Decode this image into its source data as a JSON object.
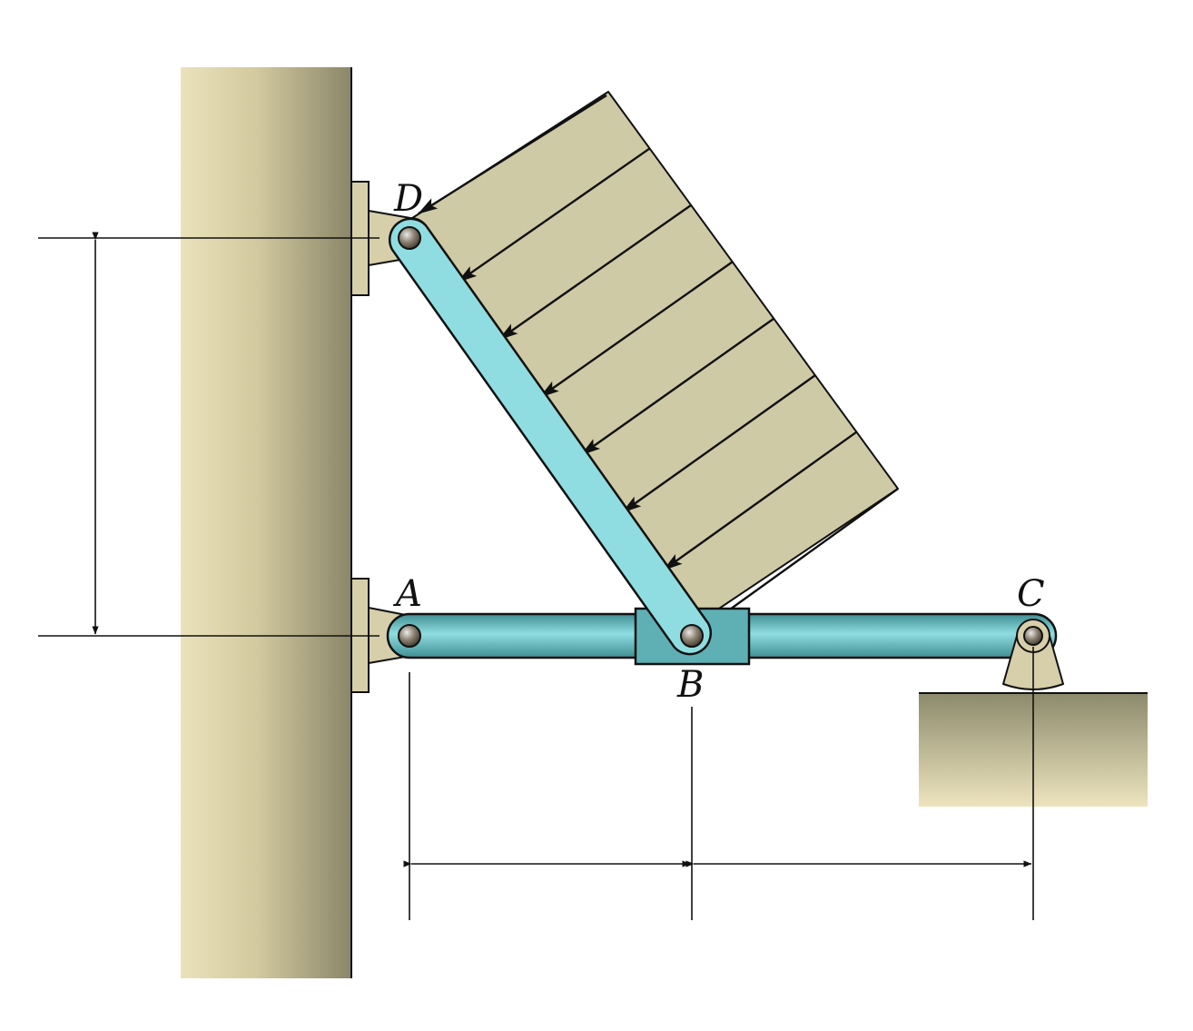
{
  "diagram": {
    "labels": {
      "A": "A",
      "B": "B",
      "C": "C",
      "D": "D"
    },
    "load_arrow_count": 8,
    "colors": {
      "member": "#6fc3c7",
      "member_dark": "#2f7a80",
      "load": "#cfcaa6",
      "column_light": "#ebe2bc",
      "column_dark": "#8a8668",
      "support": "#d6cfaa",
      "ground_light": "#e8dfb8",
      "ground_dark": "#8c8a6c",
      "line": "#111111"
    }
  }
}
